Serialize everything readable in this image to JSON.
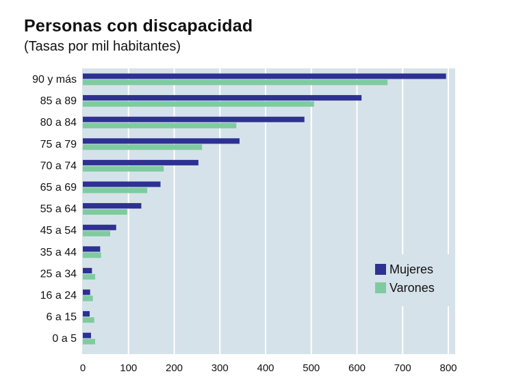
{
  "title": "Personas con discapacidad",
  "subtitle": "(Tasas por mil habitantes)",
  "chart_data": {
    "type": "bar",
    "orientation": "horizontal",
    "categories": [
      "90 y más",
      "85 a 89",
      "80 a 84",
      "75 a 79",
      "70 a 74",
      "65 a 69",
      "55 a 64",
      "45 a 54",
      "35 a 44",
      "25 a 34",
      "16 a 24",
      "6 a 15",
      "0 a 5"
    ],
    "series": [
      {
        "name": "Mujeres",
        "color": "#2e3192",
        "values": [
          795,
          610,
          485,
          343,
          253,
          170,
          128,
          73,
          38,
          20,
          16,
          15,
          18
        ]
      },
      {
        "name": "Varones",
        "color": "#7ecb9f",
        "values": [
          667,
          506,
          336,
          261,
          177,
          141,
          97,
          60,
          40,
          27,
          22,
          25,
          27
        ]
      }
    ],
    "xlim": [
      0,
      800
    ],
    "xticks": [
      0,
      100,
      200,
      300,
      400,
      500,
      600,
      700,
      800
    ],
    "grid": true,
    "legend_position": "bottom-right",
    "background": "#d6e2ea"
  }
}
